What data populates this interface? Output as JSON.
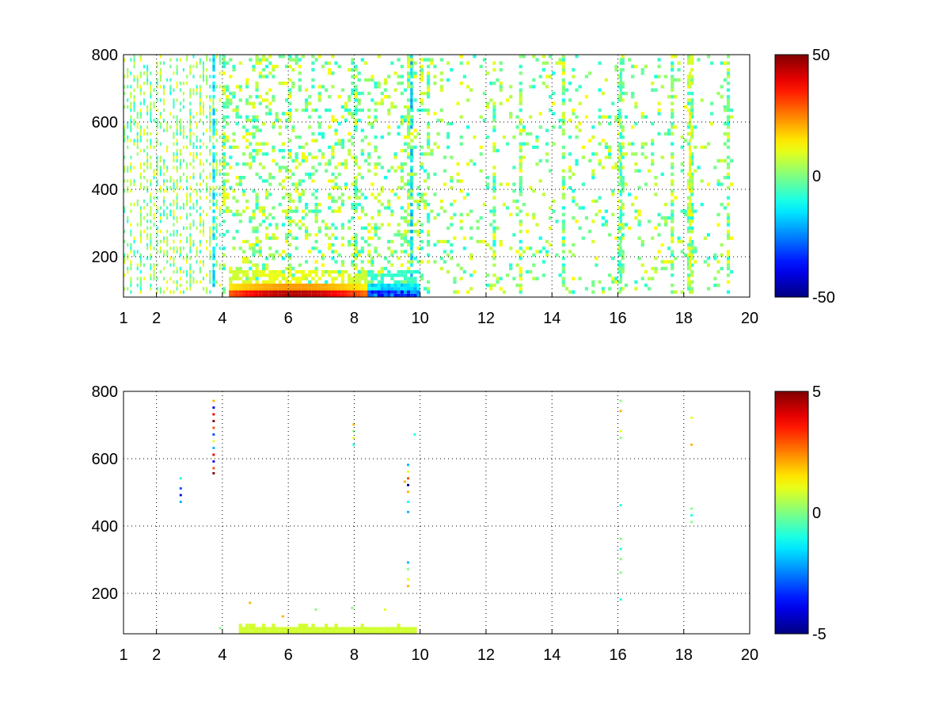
{
  "chart_data": [
    {
      "type": "heatmap",
      "title": "",
      "xlabel": "",
      "ylabel": "",
      "xlim": [
        1,
        20
      ],
      "ylim": [
        80,
        800
      ],
      "x_ticks": [
        "1",
        "2",
        "4",
        "6",
        "8",
        "10",
        "12",
        "14",
        "16",
        "18",
        "20"
      ],
      "y_ticks": [
        "200",
        "400",
        "600",
        "800"
      ],
      "grid": true,
      "colormap": "jet",
      "clim": [
        -50,
        50
      ],
      "colorbar_ticks": [
        "50",
        "0",
        "-50"
      ],
      "description_values": {
        "dense_columns_x": [
          1.2,
          1.5,
          1.8,
          2.0,
          2.6,
          3.0,
          3.3,
          3.6,
          3.7,
          4.0,
          5.0,
          6.0,
          8.0,
          9.6,
          9.7,
          10.2,
          12.2,
          13.0,
          14.3,
          16.0,
          16.1,
          17.6,
          18.1,
          18.2,
          19.3
        ],
        "bottom_band": {
          "x_start": 4.2,
          "x_end": 9.9,
          "y_top": 160,
          "y_bottom": 80,
          "peak_value": 45,
          "min_value": -40
        }
      }
    },
    {
      "type": "heatmap",
      "title": "",
      "xlabel": "",
      "ylabel": "",
      "xlim": [
        1,
        20
      ],
      "ylim": [
        80,
        800
      ],
      "x_ticks": [
        "1",
        "2",
        "4",
        "6",
        "8",
        "10",
        "12",
        "14",
        "16",
        "18",
        "20"
      ],
      "y_ticks": [
        "200",
        "400",
        "600",
        "800"
      ],
      "grid": true,
      "colormap": "jet",
      "clim": [
        -5,
        5
      ],
      "colorbar_ticks": [
        "5",
        "0",
        "-5"
      ],
      "cells": [
        {
          "x": 3.7,
          "y": 770,
          "v": 2
        },
        {
          "x": 3.7,
          "y": 750,
          "v": -4
        },
        {
          "x": 3.7,
          "y": 730,
          "v": 4
        },
        {
          "x": 3.7,
          "y": 710,
          "v": 5
        },
        {
          "x": 3.7,
          "y": 690,
          "v": 3
        },
        {
          "x": 3.7,
          "y": 670,
          "v": -3
        },
        {
          "x": 3.7,
          "y": 650,
          "v": 1
        },
        {
          "x": 3.7,
          "y": 630,
          "v": -2
        },
        {
          "x": 3.7,
          "y": 610,
          "v": 4
        },
        {
          "x": 3.7,
          "y": 590,
          "v": -4
        },
        {
          "x": 3.7,
          "y": 570,
          "v": 3
        },
        {
          "x": 3.7,
          "y": 555,
          "v": 5
        },
        {
          "x": 2.7,
          "y": 540,
          "v": -1
        },
        {
          "x": 2.7,
          "y": 510,
          "v": -3
        },
        {
          "x": 2.7,
          "y": 490,
          "v": -4
        },
        {
          "x": 2.7,
          "y": 470,
          "v": -2
        },
        {
          "x": 7.95,
          "y": 700,
          "v": 2
        },
        {
          "x": 7.95,
          "y": 680,
          "v": 0
        },
        {
          "x": 7.95,
          "y": 660,
          "v": 1
        },
        {
          "x": 7.95,
          "y": 640,
          "v": -1
        },
        {
          "x": 9.6,
          "y": 580,
          "v": -2
        },
        {
          "x": 9.6,
          "y": 560,
          "v": 1
        },
        {
          "x": 9.6,
          "y": 540,
          "v": 3
        },
        {
          "x": 9.6,
          "y": 520,
          "v": -5
        },
        {
          "x": 9.6,
          "y": 500,
          "v": 2
        },
        {
          "x": 9.6,
          "y": 470,
          "v": -1
        },
        {
          "x": 9.6,
          "y": 440,
          "v": -2
        },
        {
          "x": 9.5,
          "y": 530,
          "v": 2
        },
        {
          "x": 9.8,
          "y": 670,
          "v": -1
        },
        {
          "x": 9.6,
          "y": 290,
          "v": -2
        },
        {
          "x": 9.6,
          "y": 270,
          "v": 0
        },
        {
          "x": 9.6,
          "y": 240,
          "v": 1
        },
        {
          "x": 9.6,
          "y": 220,
          "v": 2
        },
        {
          "x": 16.05,
          "y": 770,
          "v": 0
        },
        {
          "x": 16.05,
          "y": 740,
          "v": 2
        },
        {
          "x": 16.05,
          "y": 680,
          "v": 1
        },
        {
          "x": 16.05,
          "y": 660,
          "v": 0
        },
        {
          "x": 16.05,
          "y": 460,
          "v": -1
        },
        {
          "x": 16.05,
          "y": 360,
          "v": 0
        },
        {
          "x": 16.05,
          "y": 330,
          "v": -1
        },
        {
          "x": 16.05,
          "y": 300,
          "v": 0
        },
        {
          "x": 16.05,
          "y": 260,
          "v": 0
        },
        {
          "x": 16.05,
          "y": 180,
          "v": -1
        },
        {
          "x": 18.2,
          "y": 720,
          "v": 1
        },
        {
          "x": 18.2,
          "y": 640,
          "v": 2
        },
        {
          "x": 18.2,
          "y": 450,
          "v": 0
        },
        {
          "x": 18.2,
          "y": 430,
          "v": -1
        },
        {
          "x": 18.2,
          "y": 410,
          "v": 0
        },
        {
          "x": 4.8,
          "y": 170,
          "v": 2
        },
        {
          "x": 5.8,
          "y": 130,
          "v": 2
        },
        {
          "x": 6.8,
          "y": 150,
          "v": 0
        },
        {
          "x": 7.9,
          "y": 155,
          "v": 0
        },
        {
          "x": 8.9,
          "y": 150,
          "v": 1
        },
        {
          "x": 3.9,
          "y": 95,
          "v": 0
        }
      ],
      "bottom_band": {
        "x_start": 4.5,
        "x_end": 9.8,
        "y_top": 110,
        "y_bottom": 80,
        "value": 0
      }
    }
  ]
}
